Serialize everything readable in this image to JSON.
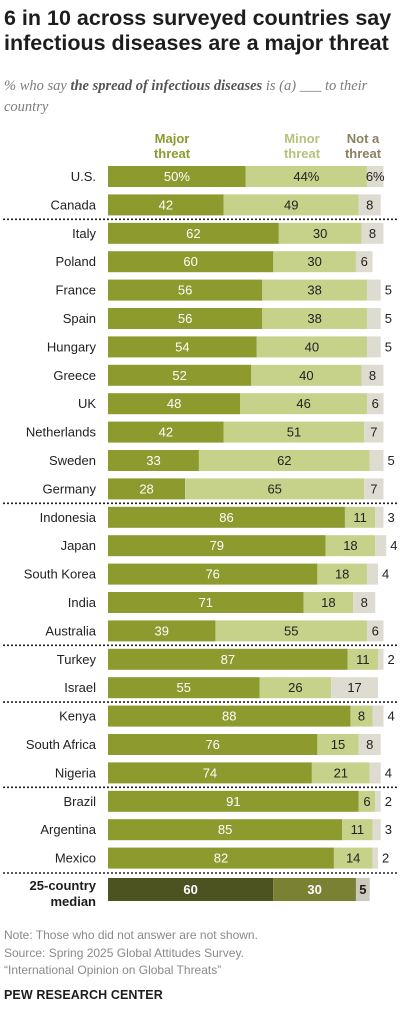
{
  "title": "6 in 10 across surveyed countries say infectious diseases are a major threat",
  "subtitle": {
    "before": "% who say ",
    "emphasis": "the spread of infectious diseases",
    "after": " is (a) ___ to their country"
  },
  "colors": {
    "major": "#8c9a2e",
    "minor": "#c6d28a",
    "not": "#dedbd0",
    "major_label": "#8c9a2e",
    "minor_label": "#b6c27a",
    "not_label": "#8a8160",
    "median_major": "#4d5221",
    "median_minor": "#7b8132",
    "median_not": "#cdc9bc"
  },
  "chart_data": {
    "type": "bar",
    "orientation": "horizontal",
    "stacked": true,
    "series_labels": [
      "Major threat",
      "Minor threat",
      "Not a threat"
    ],
    "groups": [
      {
        "rows": [
          {
            "country": "U.S.",
            "major": "50%",
            "minor": "44%",
            "not": "6%"
          },
          {
            "country": "Canada",
            "major": 42,
            "minor": 49,
            "not": 8
          }
        ]
      },
      {
        "rows": [
          {
            "country": "Italy",
            "major": 62,
            "minor": 30,
            "not": 8
          },
          {
            "country": "Poland",
            "major": 60,
            "minor": 30,
            "not": 6
          },
          {
            "country": "France",
            "major": 56,
            "minor": 38,
            "not": 5
          },
          {
            "country": "Spain",
            "major": 56,
            "minor": 38,
            "not": 5
          },
          {
            "country": "Hungary",
            "major": 54,
            "minor": 40,
            "not": 5
          },
          {
            "country": "Greece",
            "major": 52,
            "minor": 40,
            "not": 8
          },
          {
            "country": "UK",
            "major": 48,
            "minor": 46,
            "not": 6
          },
          {
            "country": "Netherlands",
            "major": 42,
            "minor": 51,
            "not": 7
          },
          {
            "country": "Sweden",
            "major": 33,
            "minor": 62,
            "not": 5
          },
          {
            "country": "Germany",
            "major": 28,
            "minor": 65,
            "not": 7
          }
        ]
      },
      {
        "rows": [
          {
            "country": "Indonesia",
            "major": 86,
            "minor": 11,
            "not": 3
          },
          {
            "country": "Japan",
            "major": 79,
            "minor": 18,
            "not": 4
          },
          {
            "country": "South Korea",
            "major": 76,
            "minor": 18,
            "not": 4
          },
          {
            "country": "India",
            "major": 71,
            "minor": 18,
            "not": 8
          },
          {
            "country": "Australia",
            "major": 39,
            "minor": 55,
            "not": 6
          }
        ]
      },
      {
        "rows": [
          {
            "country": "Turkey",
            "major": 87,
            "minor": 11,
            "not": 2
          },
          {
            "country": "Israel",
            "major": 55,
            "minor": 26,
            "not": 17
          }
        ]
      },
      {
        "rows": [
          {
            "country": "Kenya",
            "major": 88,
            "minor": 8,
            "not": 4
          },
          {
            "country": "South Africa",
            "major": 76,
            "minor": 15,
            "not": 8
          },
          {
            "country": "Nigeria",
            "major": 74,
            "minor": 21,
            "not": 4
          }
        ]
      },
      {
        "rows": [
          {
            "country": "Brazil",
            "major": 91,
            "minor": 6,
            "not": 2
          },
          {
            "country": "Argentina",
            "major": 85,
            "minor": 11,
            "not": 3
          },
          {
            "country": "Mexico",
            "major": 82,
            "minor": 14,
            "not": 2
          }
        ]
      }
    ],
    "median": {
      "label": "25-country median",
      "major": 60,
      "minor": 30,
      "not": 5
    }
  },
  "notes": {
    "note": "Note: Those who did not answer are not shown.",
    "source": "Source: Spring 2025 Global Attitudes Survey.",
    "report": "“International Opinion on Global Threats”"
  },
  "brand": "PEW RESEARCH CENTER"
}
